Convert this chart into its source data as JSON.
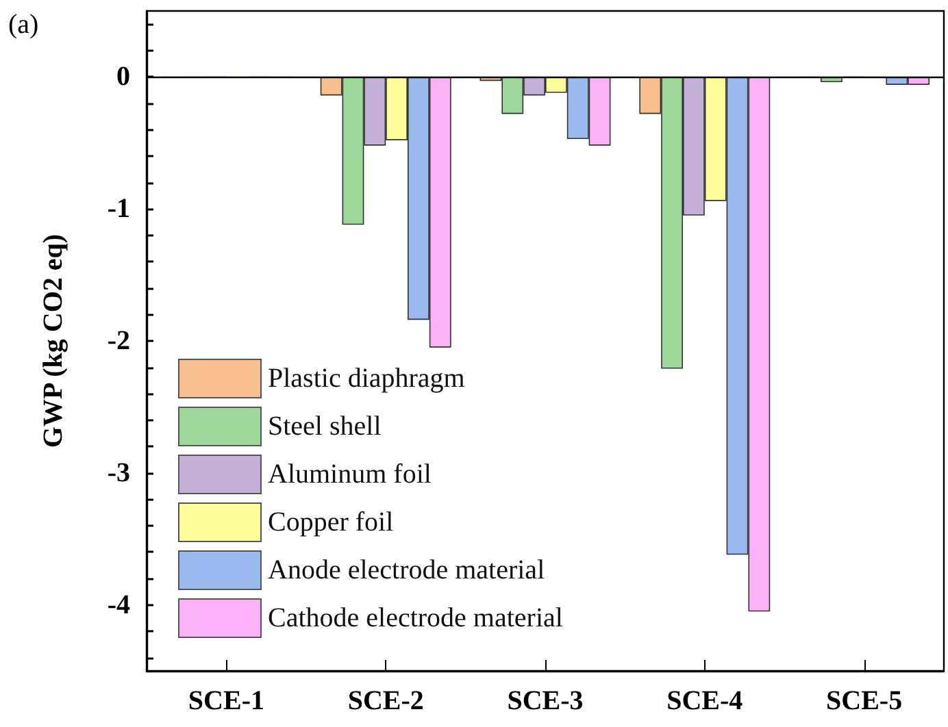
{
  "chart_data": {
    "type": "bar",
    "ylabel": "GWP (kg CO2 eq)",
    "annotations": [
      "(a)"
    ],
    "categories": [
      "SCE-1",
      "SCE-2",
      "SCE-3",
      "SCE-4",
      "SCE-5"
    ],
    "series": [
      {
        "name": "Plastic diaphragm",
        "color": "#f9c08f",
        "values": [
          0,
          -0.14,
          -0.03,
          -0.28,
          0
        ]
      },
      {
        "name": "Steel shell",
        "color": "#9dd79a",
        "values": [
          0,
          -1.12,
          -0.28,
          -2.21,
          -0.04
        ]
      },
      {
        "name": "Aluminum foil",
        "color": "#c3b1d9",
        "values": [
          0,
          -0.52,
          -0.14,
          -1.05,
          0
        ]
      },
      {
        "name": "Copper foil",
        "color": "#fdfd99",
        "values": [
          0,
          -0.48,
          -0.12,
          -0.94,
          0
        ]
      },
      {
        "name": "Anode electrode material",
        "color": "#99b9ef",
        "values": [
          0,
          -1.84,
          -0.47,
          -3.62,
          -0.06
        ]
      },
      {
        "name": "Cathode electrode material",
        "color": "#fbb1f6",
        "values": [
          0,
          -2.05,
          -0.52,
          -4.05,
          -0.06
        ]
      }
    ],
    "ylim": [
      -4.5,
      0.5
    ],
    "yticks": [
      {
        "value": 0.4,
        "label": null
      },
      {
        "value": 0.2,
        "label": null
      },
      0,
      {
        "value": -0.2,
        "label": null
      },
      {
        "value": -0.4,
        "label": null
      },
      {
        "value": -0.6,
        "label": null
      },
      {
        "value": -0.8,
        "label": null
      },
      -1,
      {
        "value": -1.2,
        "label": null
      },
      {
        "value": -1.4,
        "label": null
      },
      {
        "value": -1.6,
        "label": null
      },
      {
        "value": -1.8,
        "label": null
      },
      -2,
      {
        "value": -2.2,
        "label": null
      },
      {
        "value": -2.4,
        "label": null
      },
      {
        "value": -2.6,
        "label": null
      },
      {
        "value": -2.8,
        "label": null
      },
      -3,
      {
        "value": -3.2,
        "label": null
      },
      {
        "value": -3.4,
        "label": null
      },
      {
        "value": -3.6,
        "label": null
      },
      {
        "value": -3.8,
        "label": null
      },
      -4,
      {
        "value": -4.2,
        "label": null
      },
      {
        "value": -4.4,
        "label": null
      }
    ],
    "ref_lines": [
      {
        "axis": "y",
        "value": 0,
        "color": "#000000"
      }
    ],
    "legend": "bottom left",
    "grid": false
  }
}
